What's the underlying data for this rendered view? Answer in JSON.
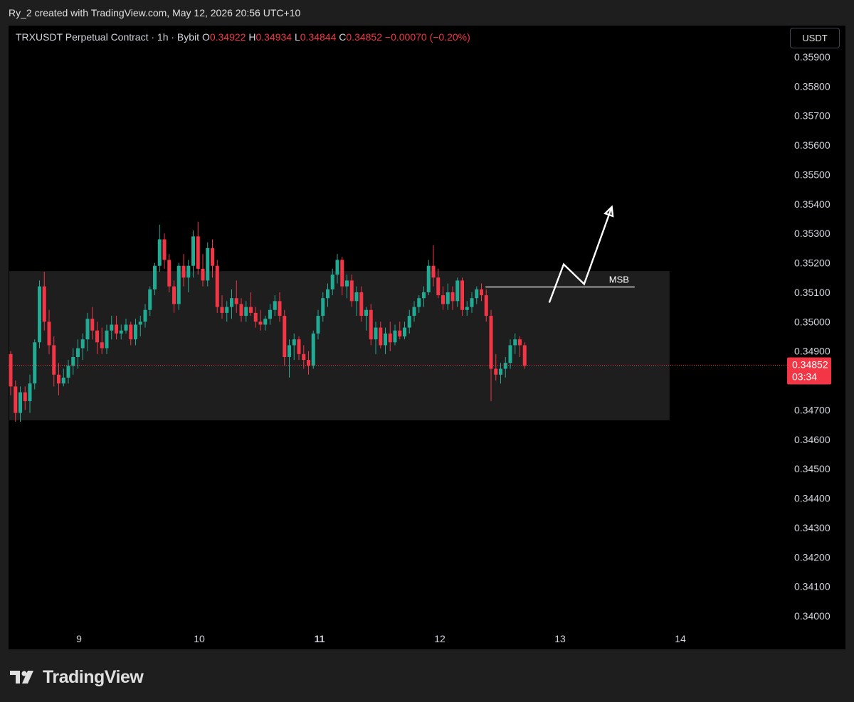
{
  "header": {
    "credit": "Ry_2 created with TradingView.com, May 12, 2026 20:56 UTC+10"
  },
  "legend": {
    "symbol": "TRXUSDT Perpetual Contract · 1h · Bybit",
    "o_label": "O",
    "o_value": "0.34922",
    "h_label": "H",
    "h_value": "0.34934",
    "l_label": "L",
    "l_value": "0.34844",
    "c_label": "C",
    "c_value": "0.34852",
    "change": "−0.00070 (−0.20%)"
  },
  "currency_button": "USDT",
  "footer": {
    "brand": "TradingView"
  },
  "colors": {
    "up": "#22ab94",
    "down": "#f23645",
    "background": "#000000",
    "zone": "#1e1e1e"
  },
  "chart_data": {
    "type": "candlestick",
    "interval": "1h",
    "y_axis": {
      "ticks": [
        "0.35900",
        "0.35800",
        "0.35700",
        "0.35600",
        "0.35500",
        "0.35400",
        "0.35300",
        "0.35200",
        "0.35100",
        "0.35000",
        "0.34900",
        "0.34800",
        "0.34700",
        "0.34600",
        "0.34500",
        "0.34400",
        "0.34300",
        "0.34200",
        "0.34100",
        "0.34000"
      ],
      "range": [
        0.3395,
        0.3598
      ]
    },
    "x_axis": {
      "ticks": [
        {
          "label": "9",
          "day": 9,
          "bold": false
        },
        {
          "label": "10",
          "day": 10,
          "bold": false
        },
        {
          "label": "11",
          "day": 11,
          "bold": true
        },
        {
          "label": "12",
          "day": 12,
          "bold": false
        },
        {
          "label": "13",
          "day": 13,
          "bold": false
        },
        {
          "label": "14",
          "day": 14,
          "bold": false
        }
      ],
      "range_days": [
        8.42,
        15.3
      ]
    },
    "last_price": {
      "value": 0.34852,
      "label": "0.34852",
      "countdown": "03:34"
    },
    "range_zone": {
      "top": 0.35172,
      "bottom": 0.34665,
      "start_day": 8.42,
      "end_day": 13.91
    },
    "msb_line": {
      "price": 0.35118,
      "start_day": 12.38,
      "end_day": 13.62,
      "label": "MSB"
    },
    "projection_path": [
      {
        "day": 12.91,
        "price": 0.35065
      },
      {
        "day": 13.03,
        "price": 0.35195
      },
      {
        "day": 13.2,
        "price": 0.35128
      },
      {
        "day": 13.43,
        "price": 0.3539
      }
    ],
    "candles": [
      [
        0.3489,
        0.349,
        0.3475,
        0.3478
      ],
      [
        0.3478,
        0.348,
        0.3466,
        0.3469
      ],
      [
        0.3469,
        0.3478,
        0.3466,
        0.3476
      ],
      [
        0.3476,
        0.3478,
        0.347,
        0.3473
      ],
      [
        0.3473,
        0.3482,
        0.3469,
        0.3479
      ],
      [
        0.3479,
        0.3494,
        0.3477,
        0.3493
      ],
      [
        0.3493,
        0.3514,
        0.3491,
        0.3512
      ],
      [
        0.3512,
        0.3517,
        0.3497,
        0.35
      ],
      [
        0.35,
        0.3504,
        0.3489,
        0.3492
      ],
      [
        0.3492,
        0.3495,
        0.3478,
        0.3482
      ],
      [
        0.3482,
        0.3486,
        0.3475,
        0.3479
      ],
      [
        0.3479,
        0.3484,
        0.3478,
        0.3481
      ],
      [
        0.3481,
        0.3487,
        0.3479,
        0.3485
      ],
      [
        0.3485,
        0.3491,
        0.3482,
        0.3488
      ],
      [
        0.3488,
        0.3494,
        0.3484,
        0.3491
      ],
      [
        0.3491,
        0.3496,
        0.3487,
        0.3494
      ],
      [
        0.3494,
        0.3503,
        0.349,
        0.3501
      ],
      [
        0.3501,
        0.3505,
        0.3494,
        0.3497
      ],
      [
        0.3497,
        0.35,
        0.3489,
        0.3493
      ],
      [
        0.3493,
        0.3498,
        0.3489,
        0.3491
      ],
      [
        0.3491,
        0.3499,
        0.3489,
        0.3497
      ],
      [
        0.3497,
        0.3502,
        0.3494,
        0.3499
      ],
      [
        0.3499,
        0.3502,
        0.3494,
        0.3496
      ],
      [
        0.3496,
        0.3499,
        0.3494,
        0.3497
      ],
      [
        0.3497,
        0.3501,
        0.3496,
        0.3499
      ],
      [
        0.3499,
        0.35,
        0.3492,
        0.3494
      ],
      [
        0.3494,
        0.3501,
        0.3492,
        0.3499
      ],
      [
        0.3499,
        0.3502,
        0.3495,
        0.35
      ],
      [
        0.35,
        0.3506,
        0.3498,
        0.3504
      ],
      [
        0.3504,
        0.3512,
        0.3502,
        0.3511
      ],
      [
        0.3511,
        0.352,
        0.3509,
        0.3519
      ],
      [
        0.3519,
        0.3533,
        0.3517,
        0.3528
      ],
      [
        0.3528,
        0.353,
        0.3518,
        0.3521
      ],
      [
        0.3521,
        0.3523,
        0.351,
        0.3512
      ],
      [
        0.3512,
        0.3514,
        0.3503,
        0.3506
      ],
      [
        0.3506,
        0.352,
        0.3504,
        0.3519
      ],
      [
        0.3519,
        0.3523,
        0.3512,
        0.3515
      ],
      [
        0.3515,
        0.3521,
        0.351,
        0.3519
      ],
      [
        0.3519,
        0.3531,
        0.3515,
        0.3529
      ],
      [
        0.3529,
        0.3534,
        0.3516,
        0.3518
      ],
      [
        0.3518,
        0.3523,
        0.3512,
        0.3514
      ],
      [
        0.3514,
        0.3527,
        0.3512,
        0.3525
      ],
      [
        0.3525,
        0.3528,
        0.3515,
        0.3519
      ],
      [
        0.3519,
        0.3521,
        0.3503,
        0.3505
      ],
      [
        0.3505,
        0.3509,
        0.3501,
        0.3503
      ],
      [
        0.3503,
        0.3507,
        0.35,
        0.3505
      ],
      [
        0.3505,
        0.3511,
        0.3501,
        0.3508
      ],
      [
        0.3508,
        0.3514,
        0.3503,
        0.3506
      ],
      [
        0.3506,
        0.3508,
        0.35,
        0.3502
      ],
      [
        0.3502,
        0.3507,
        0.35,
        0.3505
      ],
      [
        0.3505,
        0.351,
        0.3502,
        0.3503
      ],
      [
        0.3503,
        0.3505,
        0.3498,
        0.35
      ],
      [
        0.35,
        0.3504,
        0.3497,
        0.3499
      ],
      [
        0.3499,
        0.3502,
        0.3497,
        0.3501
      ],
      [
        0.3501,
        0.3506,
        0.3499,
        0.3504
      ],
      [
        0.3504,
        0.3509,
        0.3502,
        0.3507
      ],
      [
        0.3507,
        0.351,
        0.35,
        0.3502
      ],
      [
        0.3502,
        0.3504,
        0.3485,
        0.3488
      ],
      [
        0.3488,
        0.3494,
        0.3481,
        0.3492
      ],
      [
        0.3492,
        0.3496,
        0.3487,
        0.3494
      ],
      [
        0.3494,
        0.3495,
        0.3487,
        0.3489
      ],
      [
        0.3489,
        0.3492,
        0.3484,
        0.3487
      ],
      [
        0.3487,
        0.349,
        0.3482,
        0.3485
      ],
      [
        0.3485,
        0.3497,
        0.3484,
        0.3496
      ],
      [
        0.3496,
        0.3504,
        0.3494,
        0.3502
      ],
      [
        0.3502,
        0.351,
        0.35,
        0.3508
      ],
      [
        0.3508,
        0.3513,
        0.3505,
        0.3511
      ],
      [
        0.3511,
        0.3518,
        0.3509,
        0.3516
      ],
      [
        0.3516,
        0.3523,
        0.3513,
        0.3521
      ],
      [
        0.3521,
        0.3522,
        0.3509,
        0.3512
      ],
      [
        0.3512,
        0.3516,
        0.3508,
        0.3514
      ],
      [
        0.3514,
        0.3516,
        0.3505,
        0.3507
      ],
      [
        0.3507,
        0.3512,
        0.3502,
        0.351
      ],
      [
        0.351,
        0.3512,
        0.35,
        0.3502
      ],
      [
        0.3502,
        0.3505,
        0.3497,
        0.3504
      ],
      [
        0.3504,
        0.3506,
        0.3492,
        0.3494
      ],
      [
        0.3494,
        0.35,
        0.3489,
        0.3498
      ],
      [
        0.3498,
        0.35,
        0.3491,
        0.3492
      ],
      [
        0.3492,
        0.3498,
        0.3489,
        0.3496
      ],
      [
        0.3496,
        0.35,
        0.349,
        0.3493
      ],
      [
        0.3493,
        0.3499,
        0.3492,
        0.3497
      ],
      [
        0.3497,
        0.35,
        0.3494,
        0.3495
      ],
      [
        0.3495,
        0.35,
        0.3494,
        0.3498
      ],
      [
        0.3498,
        0.3504,
        0.3496,
        0.3502
      ],
      [
        0.3502,
        0.3507,
        0.35,
        0.3505
      ],
      [
        0.3505,
        0.3509,
        0.3503,
        0.3508
      ],
      [
        0.3508,
        0.3512,
        0.3505,
        0.351
      ],
      [
        0.351,
        0.3521,
        0.3509,
        0.3519
      ],
      [
        0.3519,
        0.3526,
        0.3512,
        0.3515
      ],
      [
        0.3515,
        0.3518,
        0.3508,
        0.3509
      ],
      [
        0.3509,
        0.3512,
        0.3504,
        0.3506
      ],
      [
        0.3506,
        0.3513,
        0.3504,
        0.351
      ],
      [
        0.351,
        0.3512,
        0.3504,
        0.3507
      ],
      [
        0.3507,
        0.3515,
        0.3505,
        0.3514
      ],
      [
        0.3514,
        0.3515,
        0.3502,
        0.3504
      ],
      [
        0.3504,
        0.3507,
        0.3502,
        0.3505
      ],
      [
        0.3505,
        0.351,
        0.3503,
        0.3508
      ],
      [
        0.3508,
        0.3512,
        0.3506,
        0.3511
      ],
      [
        0.3511,
        0.3513,
        0.3507,
        0.3509
      ],
      [
        0.3509,
        0.3511,
        0.35,
        0.3502
      ],
      [
        0.3502,
        0.3504,
        0.3473,
        0.3484
      ],
      [
        0.3484,
        0.3489,
        0.348,
        0.3482
      ],
      [
        0.3482,
        0.3486,
        0.3479,
        0.3484
      ],
      [
        0.3484,
        0.3488,
        0.3481,
        0.3486
      ],
      [
        0.3486,
        0.3494,
        0.3484,
        0.3492
      ],
      [
        0.3492,
        0.3496,
        0.3489,
        0.3494
      ],
      [
        0.3494,
        0.3495,
        0.3488,
        0.3492
      ],
      [
        0.3492,
        0.3493,
        0.3484,
        0.3485
      ]
    ]
  }
}
